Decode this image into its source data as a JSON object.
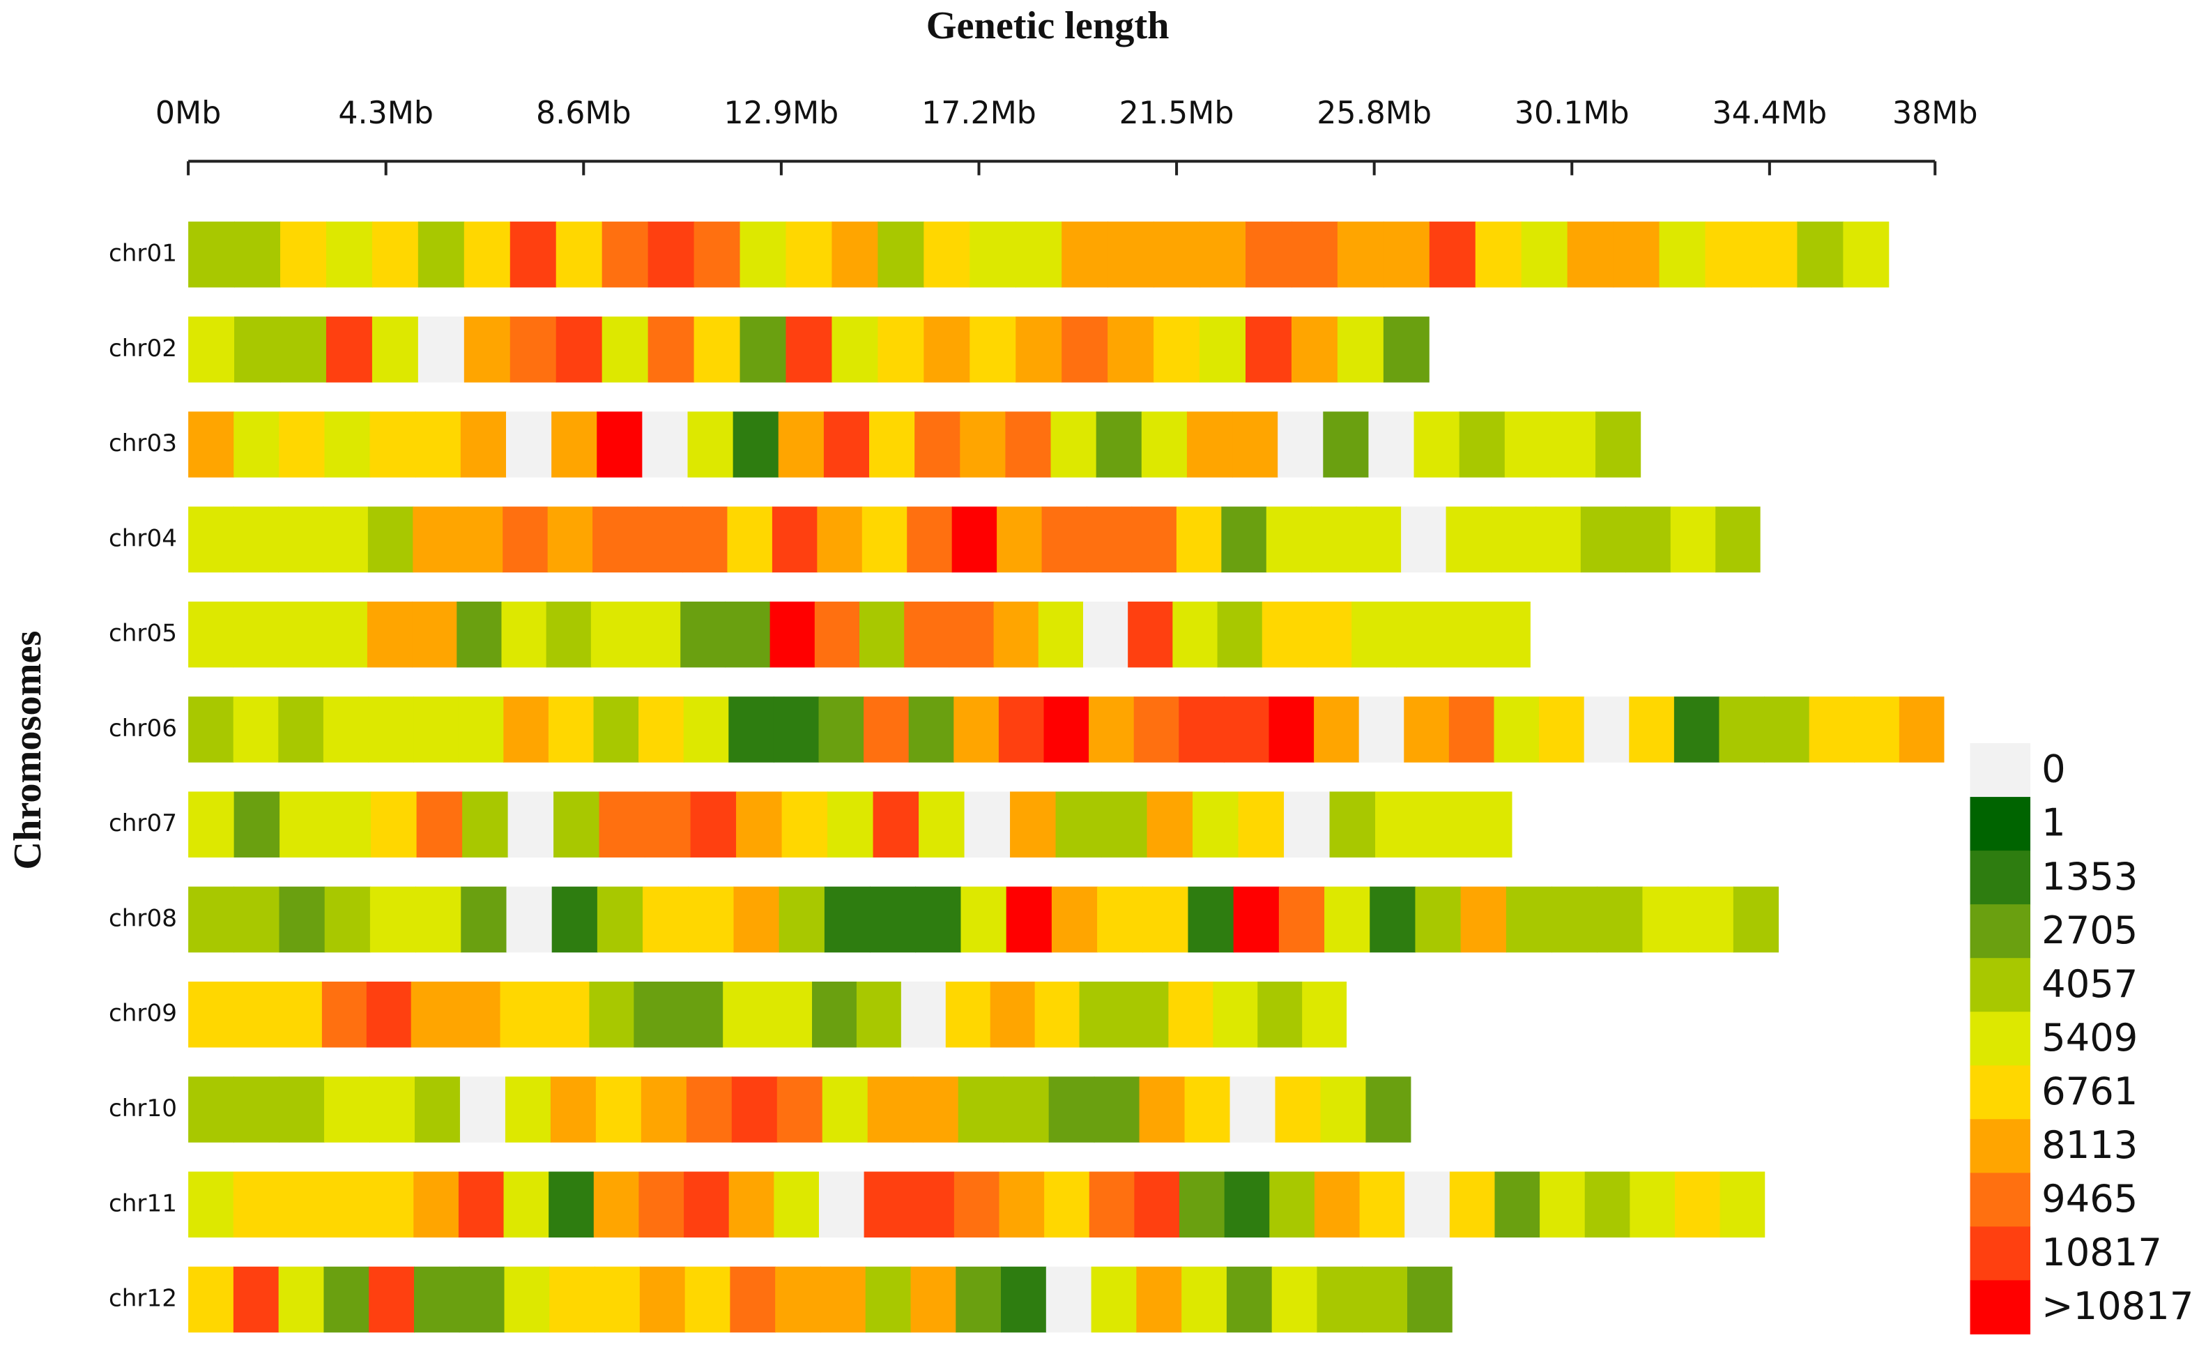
{
  "chart_data": {
    "type": "heatmap",
    "title": "Genetic length",
    "ylabel": "Chromosomes",
    "xlim": [
      0,
      38
    ],
    "xticks": [
      {
        "value": 0,
        "label": "0Mb"
      },
      {
        "value": 4.3,
        "label": "4.3Mb"
      },
      {
        "value": 8.6,
        "label": "8.6Mb"
      },
      {
        "value": 12.9,
        "label": "12.9Mb"
      },
      {
        "value": 17.2,
        "label": "17.2Mb"
      },
      {
        "value": 21.5,
        "label": "21.5Mb"
      },
      {
        "value": 25.8,
        "label": "25.8Mb"
      },
      {
        "value": 30.1,
        "label": "30.1Mb"
      },
      {
        "value": 34.4,
        "label": "34.4Mb"
      },
      {
        "value": 38,
        "label": "38Mb"
      }
    ],
    "rows": [
      {
        "name": "chr01",
        "length": 37,
        "values": [
          3400,
          3400,
          6000,
          4700,
          6000,
          3400,
          6000,
          10100,
          6000,
          8800,
          10100,
          8800,
          4700,
          6000,
          7400,
          3400,
          6000,
          4700,
          4700,
          7400,
          7400,
          7400,
          7400,
          8800,
          8800,
          7400,
          7400,
          10100,
          6000,
          4700,
          7400,
          7400,
          4700,
          6000,
          6000,
          3400,
          4700
        ]
      },
      {
        "name": "chr02",
        "length": 27,
        "values": [
          4700,
          3400,
          3400,
          10100,
          4700,
          0,
          7400,
          8800,
          10100,
          4700,
          8800,
          6000,
          2000,
          10100,
          4700,
          6000,
          7400,
          6000,
          7400,
          8800,
          7400,
          6000,
          4700,
          10100,
          7400,
          4700,
          2000
        ]
      },
      {
        "name": "chr03",
        "length": 31.6,
        "values": [
          7400,
          4700,
          6000,
          4700,
          6000,
          6000,
          7400,
          0,
          7400,
          11500,
          0,
          4700,
          700,
          7400,
          10100,
          6000,
          8800,
          7400,
          8800,
          4700,
          2000,
          4700,
          7400,
          7400,
          0,
          2000,
          0,
          4700,
          3400,
          4700,
          4700,
          3400
        ]
      },
      {
        "name": "chr04",
        "length": 34.2,
        "values": [
          4700,
          4700,
          4700,
          4700,
          3400,
          7400,
          7400,
          8800,
          7400,
          8800,
          8800,
          8800,
          6000,
          10100,
          7400,
          6000,
          8800,
          11500,
          7400,
          8800,
          8800,
          8800,
          6000,
          2000,
          4700,
          4700,
          4700,
          0,
          4700,
          4700,
          4700,
          3400,
          3400,
          4700,
          3400
        ]
      },
      {
        "name": "chr05",
        "length": 29.2,
        "values": [
          4700,
          4700,
          4700,
          4700,
          7400,
          7400,
          2000,
          4700,
          3400,
          4700,
          4700,
          2000,
          2000,
          11500,
          8800,
          3400,
          8800,
          8800,
          7400,
          4700,
          0,
          10100,
          4700,
          3400,
          6000,
          6000,
          4700,
          4700,
          4700,
          4700
        ]
      },
      {
        "name": "chr06",
        "length": 38.2,
        "values": [
          3400,
          4700,
          3400,
          4700,
          4700,
          4700,
          4700,
          7400,
          6000,
          3400,
          6000,
          4700,
          700,
          700,
          2000,
          8800,
          2000,
          7400,
          10100,
          11500,
          7400,
          8800,
          10100,
          10100,
          11500,
          7400,
          0,
          7400,
          8800,
          4700,
          6000,
          0,
          6000,
          700,
          3400,
          3400,
          6000,
          6000,
          7400
        ]
      },
      {
        "name": "chr07",
        "length": 28.8,
        "values": [
          4700,
          2000,
          4700,
          4700,
          6000,
          8800,
          3400,
          0,
          3400,
          8800,
          8800,
          10100,
          7400,
          6000,
          4700,
          10100,
          4700,
          0,
          7400,
          3400,
          3400,
          7400,
          4700,
          6000,
          0,
          3400,
          4700,
          4700,
          4700
        ]
      },
      {
        "name": "chr08",
        "length": 34.6,
        "values": [
          3400,
          3400,
          2000,
          3400,
          4700,
          4700,
          2000,
          0,
          700,
          3400,
          6000,
          6000,
          7400,
          3400,
          700,
          700,
          700,
          4700,
          11500,
          7400,
          6000,
          6000,
          700,
          11500,
          8800,
          4700,
          700,
          3400,
          7400,
          3400,
          3400,
          3400,
          4700,
          4700,
          3400
        ]
      },
      {
        "name": "chr09",
        "length": 25.2,
        "values": [
          6000,
          6000,
          6000,
          8800,
          10100,
          7400,
          7400,
          6000,
          6000,
          3400,
          2000,
          2000,
          4700,
          4700,
          2000,
          3400,
          0,
          6000,
          7400,
          6000,
          3400,
          3400,
          6000,
          4700,
          3400,
          4700
        ]
      },
      {
        "name": "chr10",
        "length": 26.6,
        "values": [
          3400,
          3400,
          3400,
          4700,
          4700,
          3400,
          0,
          4700,
          7400,
          6000,
          7400,
          8800,
          10100,
          8800,
          4700,
          7400,
          7400,
          3400,
          3400,
          2000,
          2000,
          7400,
          6000,
          0,
          6000,
          4700,
          2000
        ]
      },
      {
        "name": "chr11",
        "length": 34.3,
        "values": [
          4700,
          6000,
          6000,
          6000,
          6000,
          7400,
          10100,
          4700,
          700,
          7400,
          8800,
          10100,
          7400,
          4700,
          0,
          10100,
          10100,
          8800,
          7400,
          6000,
          8800,
          10100,
          2000,
          700,
          3400,
          7400,
          6000,
          0,
          6000,
          2000,
          4700,
          3400,
          4700,
          6000,
          4700
        ]
      },
      {
        "name": "chr12",
        "length": 27.5,
        "values": [
          6000,
          10100,
          4700,
          2000,
          10100,
          2000,
          2000,
          4700,
          6000,
          6000,
          7400,
          6000,
          8800,
          7400,
          7400,
          3400,
          7400,
          2000,
          700,
          0,
          4700,
          7400,
          4700,
          2000,
          4700,
          3400,
          3400,
          2000
        ]
      }
    ],
    "legend": {
      "position": "right",
      "items": [
        {
          "value": 0,
          "label": "0",
          "color": "#f2f2f2"
        },
        {
          "value": 1,
          "label": "1",
          "color": "#006400"
        },
        {
          "value": 1353,
          "label": "1353",
          "color": "#2e7d10"
        },
        {
          "value": 2705,
          "label": "2705",
          "color": "#6aa010"
        },
        {
          "value": 4057,
          "label": "4057",
          "color": "#a8c800"
        },
        {
          "value": 5409,
          "label": "5409",
          "color": "#dde800"
        },
        {
          "value": 6761,
          "label": "6761",
          "color": "#ffd700"
        },
        {
          "value": 8113,
          "label": "8113",
          "color": "#ffa500"
        },
        {
          "value": 9465,
          "label": "9465",
          "color": "#ff7010"
        },
        {
          "value": 10817,
          "label": "10817",
          "color": "#ff4010"
        },
        {
          "value": 10817,
          "label": ">10817",
          "color": "#ff0000"
        }
      ]
    }
  }
}
